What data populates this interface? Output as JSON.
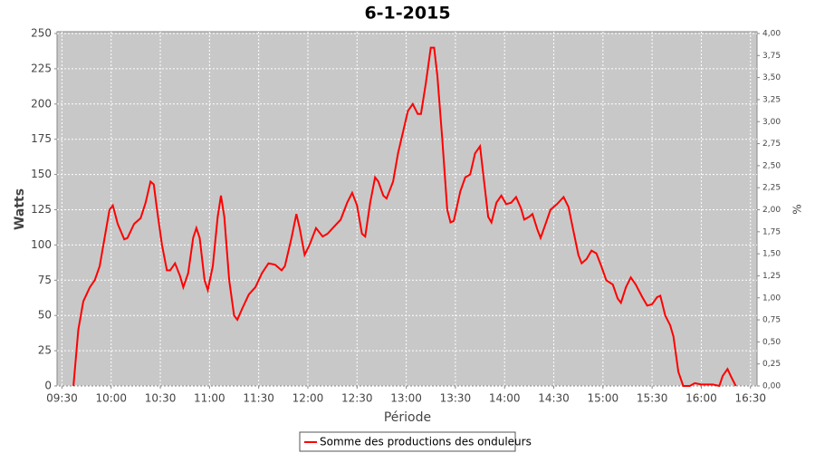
{
  "chart_data": {
    "type": "line",
    "title": "6-1-2015",
    "x_label": "Période",
    "y_label": "Watts",
    "y2_label": "%",
    "x": [
      "09:37",
      "09:40",
      "09:43",
      "09:47",
      "09:50",
      "09:53",
      "09:56",
      "09:59",
      "10:01",
      "10:04",
      "10:08",
      "10:10",
      "10:14",
      "10:18",
      "10:21",
      "10:24",
      "10:26",
      "10:28",
      "10:31",
      "10:34",
      "10:36",
      "10:39",
      "10:42",
      "10:44",
      "10:47",
      "10:50",
      "10:52",
      "10:54",
      "10:57",
      "10:59",
      "11:02",
      "11:05",
      "11:07",
      "11:09",
      "11:12",
      "11:15",
      "11:17",
      "11:20",
      "11:24",
      "11:28",
      "11:32",
      "11:36",
      "11:40",
      "11:44",
      "11:46",
      "11:50",
      "11:53",
      "11:55",
      "11:58",
      "12:01",
      "12:05",
      "12:09",
      "12:12",
      "12:16",
      "12:20",
      "12:24",
      "12:27",
      "12:30",
      "12:33",
      "12:35",
      "12:38",
      "12:41",
      "12:43",
      "12:46",
      "12:48",
      "12:52",
      "12:55",
      "12:58",
      "13:01",
      "13:04",
      "13:07",
      "13:09",
      "13:12",
      "13:15",
      "13:17",
      "13:19",
      "13:22",
      "13:25",
      "13:27",
      "13:29",
      "13:33",
      "13:36",
      "13:39",
      "13:42",
      "13:45",
      "13:47",
      "13:50",
      "13:52",
      "13:55",
      "13:58",
      "14:01",
      "14:04",
      "14:07",
      "14:10",
      "14:12",
      "14:15",
      "14:17",
      "14:20",
      "14:22",
      "14:25",
      "14:28",
      "14:32",
      "14:36",
      "14:39",
      "14:42",
      "14:45",
      "14:47",
      "14:50",
      "14:53",
      "14:56",
      "14:59",
      "15:02",
      "15:06",
      "15:09",
      "15:11",
      "15:14",
      "15:17",
      "15:20",
      "15:24",
      "15:27",
      "15:30",
      "15:33",
      "15:35",
      "15:38",
      "15:41",
      "15:43",
      "15:46",
      "15:49",
      "15:53",
      "15:56",
      "16:00",
      "16:04",
      "16:07",
      "16:11",
      "16:13",
      "16:16",
      "16:18",
      "16:21"
    ],
    "series": [
      {
        "name": "Somme des productions des onduleurs",
        "color": "#ff0000",
        "values": [
          0,
          40,
          60,
          70,
          75,
          85,
          105,
          125,
          128,
          115,
          104,
          105,
          115,
          119,
          130,
          145,
          143,
          125,
          100,
          82,
          82,
          87,
          78,
          70,
          80,
          105,
          112,
          105,
          75,
          68,
          85,
          120,
          135,
          120,
          75,
          50,
          47,
          55,
          65,
          70,
          80,
          87,
          86,
          82,
          85,
          105,
          122,
          112,
          93,
          100,
          112,
          106,
          108,
          113,
          118,
          130,
          137,
          128,
          108,
          106,
          130,
          148,
          145,
          135,
          133,
          145,
          165,
          180,
          195,
          200,
          193,
          193,
          215,
          240,
          240,
          220,
          175,
          125,
          116,
          117,
          138,
          148,
          150,
          165,
          170,
          150,
          120,
          116,
          130,
          135,
          129,
          130,
          134,
          126,
          118,
          120,
          122,
          111,
          105,
          115,
          125,
          129,
          134,
          127,
          110,
          93,
          87,
          90,
          96,
          94,
          85,
          75,
          72,
          62,
          59,
          70,
          77,
          72,
          63,
          57,
          58,
          63,
          64,
          50,
          43,
          35,
          10,
          0,
          0,
          2,
          1,
          1,
          1,
          0,
          7,
          12,
          7,
          0
        ]
      }
    ],
    "xlim": [
      "09:27",
      "16:34"
    ],
    "xticks": [
      "09:30",
      "10:00",
      "10:30",
      "11:00",
      "11:30",
      "12:00",
      "12:30",
      "13:00",
      "13:30",
      "14:00",
      "14:30",
      "15:00",
      "15:30",
      "16:00",
      "16:30"
    ],
    "ylim": [
      0,
      250
    ],
    "yticks": [
      0,
      25,
      50,
      75,
      100,
      125,
      150,
      175,
      200,
      225,
      250
    ],
    "y2lim": [
      0,
      4
    ],
    "y2ticks": [
      {
        "value": 0,
        "label": "0,00"
      },
      {
        "value": 0.25,
        "label": "0,25"
      },
      {
        "value": 0.5,
        "label": "0,50"
      },
      {
        "value": 0.75,
        "label": "0,75"
      },
      {
        "value": 1,
        "label": "1,00"
      },
      {
        "value": 1.25,
        "label": "1,25"
      },
      {
        "value": 1.5,
        "label": "1,50"
      },
      {
        "value": 1.75,
        "label": "1,75"
      },
      {
        "value": 2,
        "label": "2,00"
      },
      {
        "value": 2.25,
        "label": "2,25"
      },
      {
        "value": 2.5,
        "label": "2,50"
      },
      {
        "value": 2.75,
        "label": "2,75"
      },
      {
        "value": 3,
        "label": "3,00"
      },
      {
        "value": 3.25,
        "label": "3,25"
      },
      {
        "value": 3.5,
        "label": "3,50"
      },
      {
        "value": 3.75,
        "label": "3,75"
      },
      {
        "value": 4,
        "label": "4,00"
      }
    ],
    "grid": true,
    "legend": "bottom"
  }
}
